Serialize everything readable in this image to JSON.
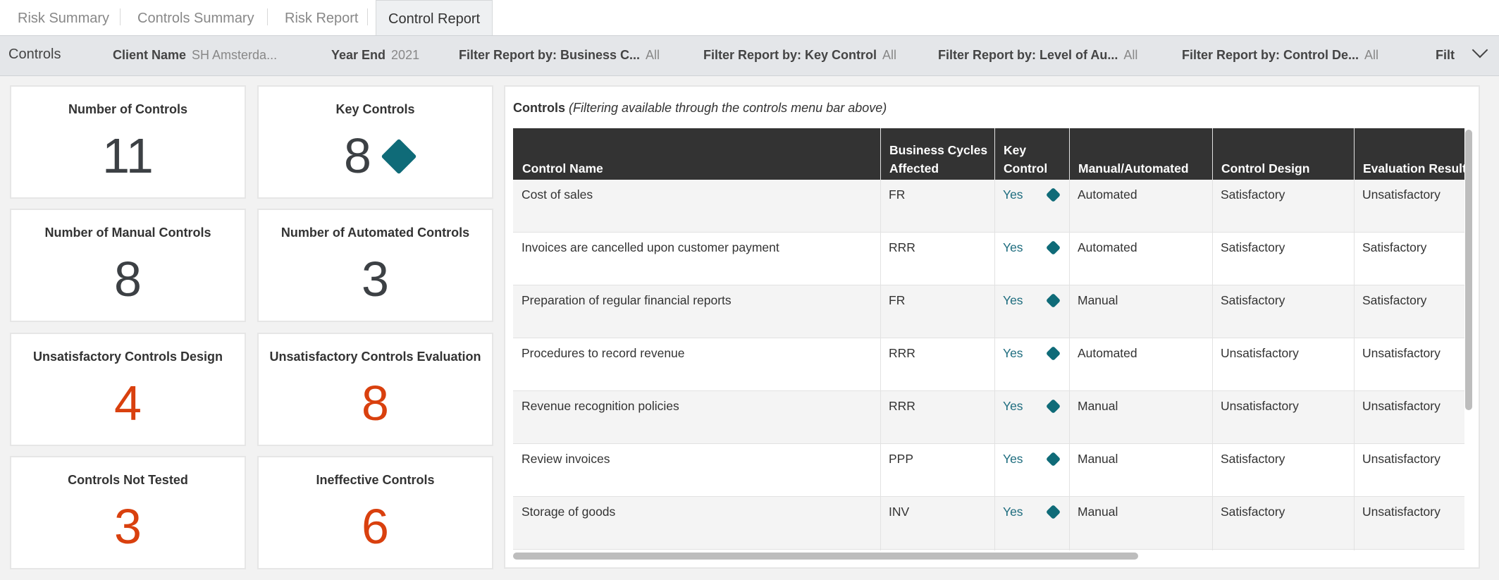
{
  "tabs": [
    "Risk Summary",
    "Controls Summary",
    "Risk Report",
    "Control Report"
  ],
  "filter_bar": {
    "title": "Controls",
    "filters": [
      {
        "label": "Client Name",
        "value": "SH Amsterda..."
      },
      {
        "label": "Year End",
        "value": "2021"
      },
      {
        "label": "Filter Report by: Business C...",
        "value": "All"
      },
      {
        "label": "Filter Report by: Key Control",
        "value": "All"
      },
      {
        "label": "Filter Report by: Level of Au...",
        "value": "All"
      },
      {
        "label": "Filter Report by: Control De...",
        "value": "All"
      },
      {
        "label": "Filt",
        "value": ""
      }
    ]
  },
  "cards": [
    {
      "title": "Number of Controls",
      "value": "11"
    },
    {
      "title": "Key Controls",
      "value": "8"
    },
    {
      "title": "Number of Manual Controls",
      "value": "8"
    },
    {
      "title": "Number of Automated Controls",
      "value": "3"
    },
    {
      "title": "Unsatisfactory Controls Design",
      "value": "4"
    },
    {
      "title": "Unsatisfactory Controls Evaluation",
      "value": "8"
    },
    {
      "title": "Controls Not Tested",
      "value": "3"
    },
    {
      "title": "Ineffective Controls",
      "value": "6"
    }
  ],
  "table": {
    "title": "Controls",
    "subtitle": "(Filtering available through the controls menu bar above)",
    "columns": [
      "Control Name",
      "Business Cycles Affected",
      "Key Control",
      "Manual/Automated",
      "Control Design",
      "Evaluation Result"
    ],
    "rows": [
      [
        "Cost of sales",
        "FR",
        "Yes",
        "Automated",
        "Satisfactory",
        "Unsatisfactory"
      ],
      [
        "Invoices are cancelled upon customer payment",
        "RRR",
        "Yes",
        "Automated",
        "Satisfactory",
        "Satisfactory"
      ],
      [
        "Preparation of regular financial reports",
        "FR",
        "Yes",
        "Manual",
        "Satisfactory",
        "Satisfactory"
      ],
      [
        "Procedures to record revenue",
        "RRR",
        "Yes",
        "Automated",
        "Unsatisfactory",
        "Unsatisfactory"
      ],
      [
        "Revenue recognition policies",
        "RRR",
        "Yes",
        "Manual",
        "Unsatisfactory",
        "Unsatisfactory"
      ],
      [
        "Review invoices",
        "PPP",
        "Yes",
        "Manual",
        "Satisfactory",
        "Unsatisfactory"
      ],
      [
        "Storage of goods",
        "INV",
        "Yes",
        "Manual",
        "Satisfactory",
        "Unsatisfactory"
      ]
    ]
  }
}
